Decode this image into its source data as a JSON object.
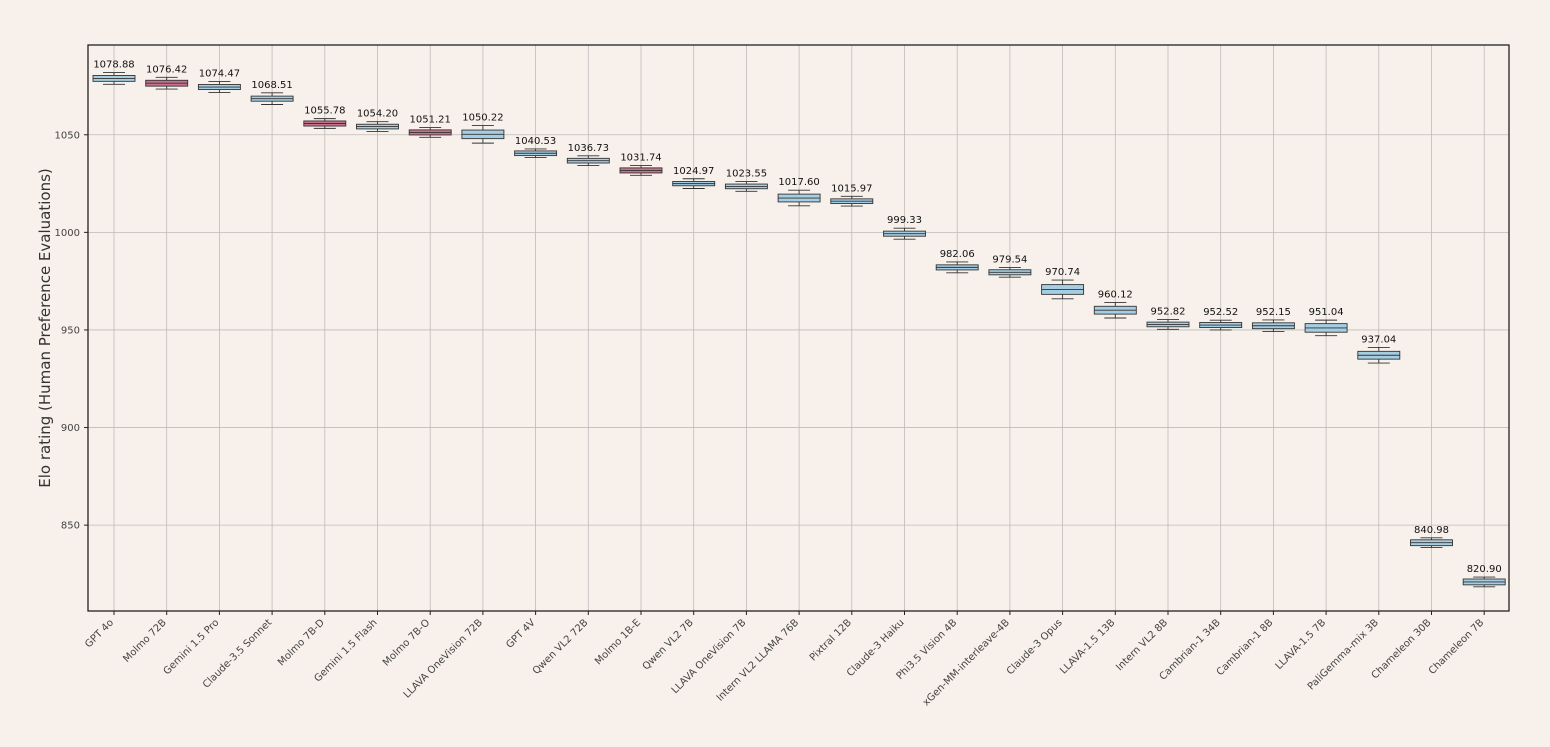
{
  "chart_data": {
    "type": "box",
    "title": "",
    "xlabel": "",
    "ylabel": "Elo rating (Human Preference Evaluations)",
    "ylim": [
      806,
      1096
    ],
    "yticks": [
      850,
      900,
      950,
      1000,
      1050
    ],
    "grid": true,
    "colors": {
      "default_box": "#a6cee3",
      "highlight_box": "#c9718f",
      "background": "#f8f1eb",
      "grid": "#bbbbbb"
    },
    "categories": [
      "GPT 4o",
      "Molmo 72B",
      "Gemini 1.5 Pro",
      "Claude-3.5 Sonnet",
      "Molmo 7B-D",
      "Gemini 1.5 Flash",
      "Molmo 7B-O",
      "LLAVA OneVision 72B",
      "GPT 4V",
      "Qwen VL2 72B",
      "Molmo 1B-E",
      "Qwen VL2 7B",
      "LLAVA OneVision 7B",
      "Intern VL2 LLAMA 76B",
      "Pixtral 12B",
      "Claude-3 Haiku",
      "Phi3.5 Vision 4B",
      "xGen-MM-interleave-4B",
      "Claude-3 Opus",
      "LLAVA-1.5 13B",
      "Intern VL2 8B",
      "Cambrian-1 34B",
      "Cambrian-1 8B",
      "LLAVA-1.5 7B",
      "PaliGemma-mix 3B",
      "Chameleon 30B",
      "Chameleon 7B"
    ],
    "values": [
      1078.88,
      1076.42,
      1074.47,
      1068.51,
      1055.78,
      1054.2,
      1051.21,
      1050.22,
      1040.53,
      1036.73,
      1031.74,
      1024.97,
      1023.55,
      1017.6,
      1015.97,
      999.33,
      982.06,
      979.54,
      970.74,
      960.12,
      952.82,
      952.52,
      952.15,
      951.04,
      937.04,
      840.98,
      820.9
    ],
    "value_labels": [
      "1078.88",
      "1076.42",
      "1074.47",
      "1068.51",
      "1055.78",
      "1054.20",
      "1051.21",
      "1050.22",
      "1040.53",
      "1036.73",
      "1031.74",
      "1024.97",
      "1023.55",
      "1017.60",
      "1015.97",
      "999.33",
      "982.06",
      "979.54",
      "970.74",
      "960.12",
      "952.82",
      "952.52",
      "952.15",
      "951.04",
      "937.04",
      "840.98",
      "820.90"
    ],
    "box_half_height": [
      1.5,
      1.5,
      1.3,
      1.3,
      1.3,
      1.2,
      1.3,
      2.2,
      1.2,
      1.2,
      1.3,
      1.1,
      1.2,
      2.0,
      1.2,
      1.3,
      1.3,
      1.3,
      2.5,
      2.0,
      1.2,
      1.3,
      1.5,
      2.2,
      2.0,
      1.5,
      1.5
    ],
    "whisker_half_range": [
      3.0,
      3.0,
      2.8,
      3.0,
      2.5,
      2.5,
      2.5,
      4.5,
      2.2,
      2.5,
      2.5,
      2.5,
      2.5,
      4.0,
      2.5,
      2.8,
      2.8,
      2.5,
      4.8,
      4.0,
      2.5,
      2.5,
      3.0,
      4.0,
      4.0,
      2.5,
      2.5
    ],
    "highlighted": [
      "Molmo 72B",
      "Molmo 7B-D",
      "Molmo 7B-O",
      "Molmo 1B-E"
    ]
  }
}
